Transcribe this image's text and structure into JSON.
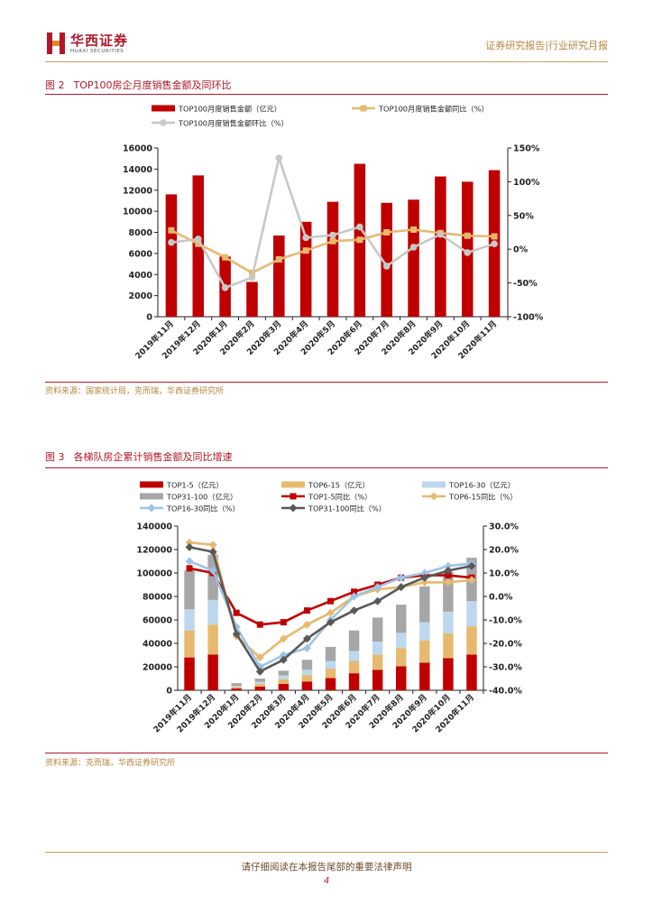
{
  "header": {
    "logo_cn": "华西证券",
    "logo_en": "HUAXI SECURITIES",
    "report_type": "证券研究报告|行业研究月报"
  },
  "figure2": {
    "num": "图 2",
    "title": "TOP100房企月度销售金额及同环比",
    "source": "资料来源：国家统计局，克而瑞，华西证券研究所"
  },
  "figure3": {
    "num": "图 3",
    "title": "各梯队房企累计销售金额及同比增速",
    "source": "资料来源：克而瑞，华西证券研究所"
  },
  "footer": {
    "disclaimer": "请仔细阅读在本报告尾部的重要法律声明",
    "page": "4"
  },
  "colors": {
    "red": "#c00000",
    "tan": "#e6b96f",
    "lightblue": "#bdd7ee",
    "gray": "#a6a6a6",
    "darkgray": "#595959",
    "brand": "#b0182a"
  },
  "chart_data": [
    {
      "type": "bar",
      "categories": [
        "2019年11月",
        "2019年12月",
        "2020年1月",
        "2020年2月",
        "2020年3月",
        "2020年4月",
        "2020年5月",
        "2020年6月",
        "2020年7月",
        "2020年8月",
        "2020年9月",
        "2020年10月",
        "2020年11月"
      ],
      "series": [
        {
          "name": "TOP100月度销售金额（亿元）",
          "type": "bar",
          "axis": "left",
          "values": [
            11600,
            13400,
            5700,
            3300,
            7700,
            9000,
            10900,
            14500,
            10800,
            11100,
            13300,
            12800,
            13900
          ]
        },
        {
          "name": "TOP100月度销售金额同比（%）",
          "type": "line",
          "axis": "right",
          "values": [
            28,
            8,
            -12,
            -35,
            -15,
            -2,
            12,
            14,
            25,
            29,
            24,
            20,
            19
          ]
        },
        {
          "name": "TOP100月度销售金额环比（%）",
          "type": "line",
          "axis": "right",
          "values": [
            10,
            15,
            -57,
            -42,
            135,
            17,
            21,
            33,
            -25,
            3,
            22,
            -5,
            8
          ]
        }
      ],
      "y_left": {
        "min": 0,
        "max": 16000,
        "ticks": [
          "0",
          "2000",
          "4000",
          "6000",
          "8000",
          "10000",
          "12000",
          "14000",
          "16000"
        ]
      },
      "y_right": {
        "min": -100,
        "max": 150,
        "ticks": [
          "-100%",
          "-50%",
          "0%",
          "50%",
          "100%",
          "150%"
        ]
      },
      "legend": "top"
    },
    {
      "type": "bar",
      "categories": [
        "2019年11月",
        "2019年12月",
        "2020年1月",
        "2020年2月",
        "2020年3月",
        "2020年4月",
        "2020年5月",
        "2020年6月",
        "2020年7月",
        "2020年8月",
        "2020年9月",
        "2020年10月",
        "2020年11月"
      ],
      "series": [
        {
          "name": "TOP1-5（亿元）",
          "type": "stacked-bar",
          "axis": "left",
          "values": [
            28000,
            30500,
            1500,
            3200,
            5500,
            7500,
            10500,
            14500,
            17500,
            20500,
            23500,
            27500,
            30500
          ]
        },
        {
          "name": "TOP6-15（亿元）",
          "type": "stacked-bar",
          "axis": "left",
          "values": [
            23000,
            25500,
            1300,
            2300,
            4000,
            5500,
            8000,
            10500,
            13000,
            15500,
            19000,
            21000,
            24000
          ]
        },
        {
          "name": "TOP16-30（亿元）",
          "type": "stacked-bar",
          "axis": "left",
          "values": [
            18000,
            21000,
            1000,
            1800,
            3200,
            4500,
            6500,
            8500,
            11000,
            13000,
            15500,
            18500,
            21500
          ]
        },
        {
          "name": "TOP31-100（亿元）",
          "type": "stacked-bar",
          "axis": "left",
          "values": [
            33000,
            38500,
            2200,
            2700,
            4000,
            8500,
            12000,
            17500,
            20500,
            24000,
            30500,
            34000,
            37000
          ]
        },
        {
          "name": "TOP1-5同比（%）",
          "type": "line",
          "axis": "right",
          "values": [
            12,
            10,
            -7,
            -12,
            -11,
            -6,
            -2,
            2,
            5,
            8,
            9,
            9,
            8
          ]
        },
        {
          "name": "TOP6-15同比（%）",
          "type": "line",
          "axis": "right",
          "values": [
            23,
            22,
            -17,
            -26,
            -18,
            -12,
            -7,
            0,
            3,
            4,
            6,
            6,
            7
          ]
        },
        {
          "name": "TOP16-30同比（%）",
          "type": "line",
          "axis": "right",
          "values": [
            15,
            11,
            -13,
            -30,
            -25,
            -22,
            -10,
            0,
            4,
            8,
            10,
            13,
            14
          ]
        },
        {
          "name": "TOP31-100同比（%）",
          "type": "line",
          "axis": "right",
          "values": [
            21,
            19,
            -16,
            -32,
            -27,
            -18,
            -11,
            -6,
            -2,
            4,
            8,
            11,
            13
          ]
        }
      ],
      "y_left": {
        "min": 0,
        "max": 140000,
        "ticks": [
          "0",
          "20000",
          "40000",
          "60000",
          "80000",
          "100000",
          "120000",
          "140000"
        ]
      },
      "y_right": {
        "min": -40,
        "max": 30,
        "ticks": [
          "-40.0%",
          "-30.0%",
          "-20.0%",
          "-10.0%",
          "0.0%",
          "10.0%",
          "20.0%",
          "30.0%"
        ]
      },
      "legend": "top"
    }
  ]
}
